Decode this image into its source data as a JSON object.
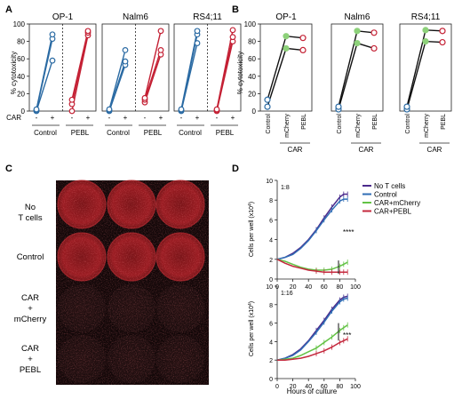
{
  "panels": {
    "A": {
      "letter": "A",
      "ylabel": "% cytotoxicity",
      "y_ticks": [
        "0",
        "20",
        "40",
        "60",
        "80",
        "100"
      ],
      "x_row_label": "CAR",
      "x_ticks": [
        "-",
        "+",
        "-",
        "+"
      ],
      "group_labels": [
        "Control",
        "PEBL"
      ]
    },
    "B": {
      "letter": "B",
      "ylabel": "% cytotoxicity",
      "y_ticks": [
        "0",
        "20",
        "40",
        "60",
        "80",
        "100"
      ],
      "x_ticks": [
        "Control",
        "mCherry",
        "PEBL"
      ],
      "group_label": "CAR"
    },
    "C": {
      "letter": "C",
      "row_labels": [
        [
          "No",
          "T cells"
        ],
        [
          "Control"
        ],
        [
          "CAR",
          "+",
          "mCherry"
        ],
        [
          "CAR",
          "+",
          "PEBL"
        ]
      ]
    },
    "D": {
      "letter": "D",
      "ylabel": "Cells per well (x10",
      "ylabel_sup": "4",
      "ylabel_end": ")",
      "xlabel": "Hours of culture",
      "y_ticks": [
        "0",
        "2",
        "4",
        "6",
        "8",
        "10"
      ],
      "x_ticks": [
        "0",
        "20",
        "40",
        "60",
        "80",
        "100"
      ],
      "legend": [
        "No T cells",
        "Control",
        "CAR+mCherry",
        "CAR+PEBL"
      ],
      "legend_colors": [
        "#4b2a8c",
        "#2f6db5",
        "#63c245",
        "#c4283d"
      ],
      "sig_top": "****",
      "sig_bottom": "***"
    }
  },
  "chart_data": [
    {
      "panel": "A",
      "type": "scatter",
      "ylabel": "% cytotoxicity",
      "ylim": [
        0,
        100
      ],
      "x_categories": [
        "-",
        "+"
      ],
      "subplots": [
        {
          "title": "OP-1",
          "control_minus": [
            0,
            1,
            2
          ],
          "control_plus": [
            58,
            83,
            88
          ],
          "pebl_minus": [
            0,
            8,
            13
          ],
          "pebl_plus": [
            87,
            90,
            92
          ]
        },
        {
          "title": "Nalm6",
          "control_minus": [
            0,
            1,
            2
          ],
          "control_plus": [
            53,
            57,
            70
          ],
          "pebl_minus": [
            10,
            13,
            15
          ],
          "pebl_plus": [
            65,
            70,
            92
          ]
        },
        {
          "title": "RS4;11",
          "control_minus": [
            0,
            1,
            2
          ],
          "control_plus": [
            78,
            88,
            92
          ],
          "pebl_minus": [
            0,
            1,
            2
          ],
          "pebl_plus": [
            80,
            85,
            93
          ]
        }
      ],
      "colors": {
        "control": "#2a6aa3",
        "pebl": "#c42034"
      }
    },
    {
      "panel": "B",
      "type": "line",
      "ylabel": "% cytotoxicity",
      "ylim": [
        0,
        100
      ],
      "categories": [
        "Control",
        "mCherry",
        "PEBL"
      ],
      "subplots": [
        {
          "title": "OP-1",
          "series": [
            {
              "values": [
                5,
                72,
                70
              ]
            },
            {
              "values": [
                13,
                86,
                84
              ]
            }
          ]
        },
        {
          "title": "Nalm6",
          "series": [
            {
              "values": [
                2,
                78,
                72
              ]
            },
            {
              "values": [
                5,
                92,
                90
              ]
            }
          ]
        },
        {
          "title": "RS4;11",
          "series": [
            {
              "values": [
                2,
                80,
                79
              ]
            },
            {
              "values": [
                5,
                93,
                92
              ]
            }
          ]
        }
      ],
      "marker_colors": [
        "#2a6aa3",
        "#8dd17a",
        "#c42034"
      ]
    },
    {
      "panel": "D",
      "type": "line",
      "xlabel": "Hours of culture",
      "ylabel": "Cells per well (x10⁴)",
      "xlim": [
        0,
        100
      ],
      "ylim": [
        0,
        10
      ],
      "subplots": [
        {
          "title": "1:8",
          "x": [
            0,
            10,
            20,
            30,
            40,
            50,
            60,
            70,
            80,
            85,
            90
          ],
          "series": [
            {
              "name": "No T cells",
              "values": [
                2.0,
                2.2,
                2.6,
                3.2,
                4.0,
                5.0,
                6.2,
                7.3,
                8.3,
                8.6,
                8.6
              ]
            },
            {
              "name": "Control",
              "values": [
                2.0,
                2.2,
                2.5,
                3.1,
                3.9,
                4.9,
                6.0,
                7.0,
                7.9,
                8.1,
                8.1
              ]
            },
            {
              "name": "CAR+mCherry",
              "values": [
                2.0,
                1.8,
                1.5,
                1.2,
                1.0,
                0.9,
                0.9,
                1.0,
                1.3,
                1.5,
                1.7
              ]
            },
            {
              "name": "CAR+PEBL",
              "values": [
                2.0,
                1.6,
                1.3,
                1.1,
                0.9,
                0.8,
                0.7,
                0.7,
                0.7,
                0.7,
                0.7
              ]
            }
          ]
        },
        {
          "title": "1:16",
          "x": [
            0,
            10,
            20,
            30,
            40,
            50,
            60,
            70,
            80,
            85,
            90
          ],
          "series": [
            {
              "name": "No T cells",
              "values": [
                2.0,
                2.2,
                2.6,
                3.2,
                4.1,
                5.2,
                6.3,
                7.5,
                8.5,
                8.8,
                8.9
              ]
            },
            {
              "name": "Control",
              "values": [
                2.0,
                2.2,
                2.5,
                3.1,
                4.0,
                5.0,
                6.1,
                7.3,
                8.3,
                8.6,
                8.7
              ]
            },
            {
              "name": "CAR+mCherry",
              "values": [
                2.0,
                2.1,
                2.2,
                2.5,
                2.9,
                3.3,
                3.9,
                4.5,
                5.2,
                5.5,
                5.8
              ]
            },
            {
              "name": "CAR+PEBL",
              "values": [
                2.0,
                2.0,
                2.1,
                2.2,
                2.4,
                2.7,
                3.0,
                3.4,
                3.9,
                4.1,
                4.3
              ]
            }
          ]
        }
      ]
    }
  ]
}
